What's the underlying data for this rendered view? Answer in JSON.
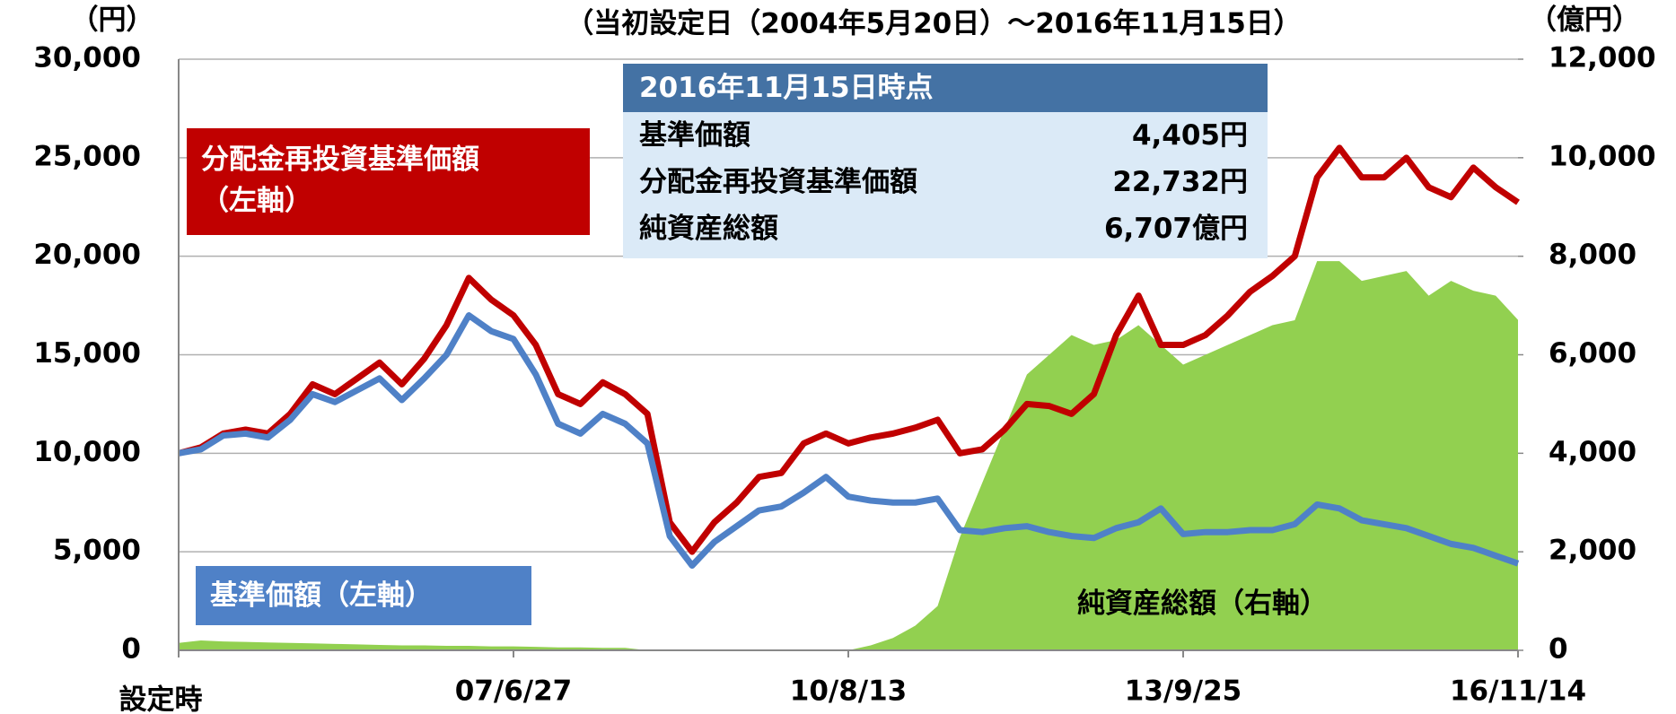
{
  "chart_data": {
    "type": "line",
    "title": "（当初設定日（2004年5月20日）～2016年11月15日）",
    "y_label": "（円）",
    "y2_label": "（億円）",
    "categories": [
      "設定時",
      null,
      null,
      null,
      null,
      null,
      null,
      null,
      null,
      null,
      null,
      null,
      null,
      null,
      null,
      "07/6/27",
      null,
      null,
      null,
      null,
      null,
      null,
      null,
      null,
      null,
      null,
      null,
      null,
      null,
      null,
      "10/8/13",
      null,
      null,
      null,
      null,
      null,
      null,
      null,
      null,
      null,
      null,
      null,
      null,
      null,
      null,
      "13/9/25",
      null,
      null,
      null,
      null,
      null,
      null,
      null,
      null,
      null,
      null,
      null,
      null,
      null,
      null,
      "16/11/14"
    ],
    "ylim": [
      0,
      30000
    ],
    "yticks": [
      0,
      {
        "value": 5000,
        "label": "5,000"
      },
      {
        "value": 10000,
        "label": "10,000"
      },
      {
        "value": 15000,
        "label": "15,000"
      },
      {
        "value": 20000,
        "label": "20,000"
      },
      {
        "value": 25000,
        "label": "25,000"
      },
      {
        "value": 30000,
        "label": "30,000"
      }
    ],
    "y2lim": [
      0,
      12000
    ],
    "y2ticks": [
      0,
      {
        "value": 2000,
        "label": "2,000"
      },
      {
        "value": 4000,
        "label": "4,000"
      },
      {
        "value": 6000,
        "label": "6,000"
      },
      {
        "value": 8000,
        "label": "8,000"
      },
      {
        "value": 10000,
        "label": "10,000"
      },
      {
        "value": 12000,
        "label": "12,000"
      }
    ],
    "grid": true,
    "series": [
      {
        "name": "純資産総額（右軸）",
        "color": "#92d050",
        "kind": "area",
        "axis": "y2",
        "values": [
          150,
          200,
          180,
          170,
          160,
          150,
          140,
          130,
          120,
          110,
          100,
          100,
          90,
          90,
          80,
          80,
          70,
          60,
          60,
          50,
          50,
          0,
          0,
          0,
          0,
          0,
          0,
          0,
          0,
          0,
          0,
          100,
          250,
          500,
          900,
          2300,
          3400,
          4500,
          5600,
          6000,
          6400,
          6200,
          6300,
          6600,
          6200,
          5800,
          6000,
          6200,
          6400,
          6600,
          6700,
          7900,
          7900,
          7500,
          7600,
          7700,
          7200,
          7500,
          7300,
          7200,
          6707
        ]
      },
      {
        "name": "分配金再投資基準価額\n（左軸）",
        "color": "#c00000",
        "kind": "line",
        "values": [
          10000,
          10300,
          11000,
          11200,
          11000,
          12000,
          13500,
          13000,
          13800,
          14600,
          13500,
          14800,
          16500,
          18900,
          17800,
          17000,
          15500,
          13000,
          12500,
          13600,
          13000,
          12000,
          6500,
          5000,
          6500,
          7500,
          8800,
          9000,
          10500,
          11000,
          10500,
          10800,
          11000,
          11300,
          11700,
          10000,
          10200,
          11200,
          12500,
          12400,
          12000,
          13000,
          16000,
          18000,
          15500,
          15500,
          16000,
          17000,
          18200,
          19000,
          20000,
          24000,
          25500,
          24000,
          24000,
          25000,
          23500,
          23000,
          24500,
          23500,
          22732
        ]
      },
      {
        "name": "基準価額（左軸）",
        "color": "#4f81c7",
        "kind": "line",
        "values": [
          10000,
          10200,
          10900,
          11000,
          10800,
          11700,
          13000,
          12600,
          13200,
          13800,
          12700,
          13800,
          15000,
          17000,
          16200,
          15800,
          14000,
          11500,
          11000,
          12000,
          11500,
          10500,
          5800,
          4300,
          5500,
          6300,
          7100,
          7300,
          8000,
          8800,
          7800,
          7600,
          7500,
          7500,
          7700,
          6100,
          6000,
          6200,
          6300,
          6000,
          5800,
          5700,
          6200,
          6500,
          7200,
          5900,
          6000,
          6000,
          6100,
          6100,
          6400,
          7400,
          7200,
          6600,
          6400,
          6200,
          5800,
          5400,
          5200,
          4800,
          4405
        ]
      }
    ],
    "info": {
      "title": "2016年11月15日時点",
      "rows": [
        [
          "基準価額",
          "4,405円"
        ],
        [
          "分配金再投資基準価額",
          "22,732円"
        ],
        [
          "純資産総額",
          "6,707億円"
        ]
      ]
    }
  }
}
